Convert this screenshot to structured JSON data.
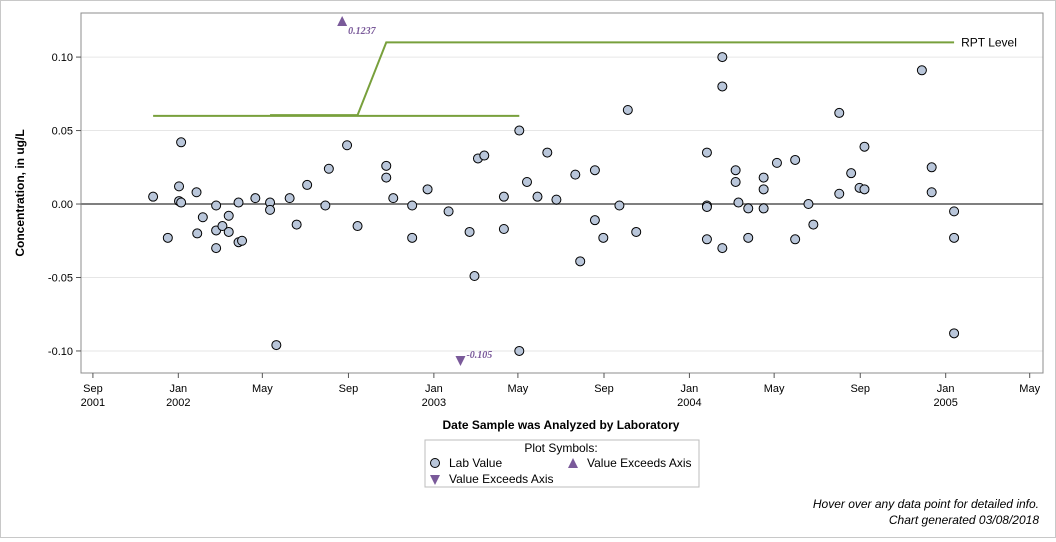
{
  "chart_data": {
    "type": "scatter",
    "ylabel": "Concentration, in ug/L",
    "xlabel": "Date Sample was Analyzed by Laboratory",
    "ylim": [
      -0.115,
      0.13
    ],
    "xlim": [
      "2001-08-15",
      "2005-05-20"
    ],
    "yticks": [
      {
        "value": 0.1,
        "label": "0.10"
      },
      {
        "value": 0.05,
        "label": "0.05"
      },
      {
        "value": 0.0,
        "label": "0.00"
      },
      {
        "value": -0.05,
        "label": "-0.05"
      },
      {
        "value": -0.1,
        "label": "-0.10"
      }
    ],
    "xticks": [
      {
        "date": "2001-09-01",
        "label1": "Sep",
        "label2": "2001"
      },
      {
        "date": "2002-01-01",
        "label1": "Jan",
        "label2": "2002"
      },
      {
        "date": "2002-05-01",
        "label1": "May",
        "label2": ""
      },
      {
        "date": "2002-09-01",
        "label1": "Sep",
        "label2": ""
      },
      {
        "date": "2003-01-01",
        "label1": "Jan",
        "label2": "2003"
      },
      {
        "date": "2003-05-01",
        "label1": "May",
        "label2": ""
      },
      {
        "date": "2003-09-01",
        "label1": "Sep",
        "label2": ""
      },
      {
        "date": "2004-01-01",
        "label1": "Jan",
        "label2": "2004"
      },
      {
        "date": "2004-05-01",
        "label1": "May",
        "label2": ""
      },
      {
        "date": "2004-09-01",
        "label1": "Sep",
        "label2": ""
      },
      {
        "date": "2005-01-01",
        "label1": "Jan",
        "label2": "2005"
      },
      {
        "date": "2005-05-01",
        "label1": "May",
        "label2": ""
      }
    ],
    "zero_line": 0.0,
    "gridlines": "horizontal",
    "series": [
      {
        "name": "Lab Value",
        "marker": "circle",
        "color": "#b9c6da",
        "points": [
          {
            "x": "2001-11-26",
            "y": 0.005
          },
          {
            "x": "2001-12-17",
            "y": -0.023
          },
          {
            "x": "2002-01-02",
            "y": 0.012
          },
          {
            "x": "2002-01-02",
            "y": 0.002
          },
          {
            "x": "2002-01-05",
            "y": 0.001
          },
          {
            "x": "2002-01-05",
            "y": 0.042
          },
          {
            "x": "2002-01-27",
            "y": 0.008
          },
          {
            "x": "2002-01-28",
            "y": -0.02
          },
          {
            "x": "2002-02-05",
            "y": -0.009
          },
          {
            "x": "2002-02-24",
            "y": -0.001
          },
          {
            "x": "2002-02-24",
            "y": -0.018
          },
          {
            "x": "2002-02-24",
            "y": -0.03
          },
          {
            "x": "2002-03-05",
            "y": -0.015
          },
          {
            "x": "2002-03-14",
            "y": -0.019
          },
          {
            "x": "2002-03-14",
            "y": -0.008
          },
          {
            "x": "2002-03-28",
            "y": 0.001
          },
          {
            "x": "2002-03-28",
            "y": -0.026
          },
          {
            "x": "2002-04-02",
            "y": -0.025
          },
          {
            "x": "2002-04-21",
            "y": 0.004
          },
          {
            "x": "2002-05-12",
            "y": 0.001
          },
          {
            "x": "2002-05-12",
            "y": -0.004
          },
          {
            "x": "2002-05-21",
            "y": -0.096
          },
          {
            "x": "2002-06-09",
            "y": 0.004
          },
          {
            "x": "2002-06-19",
            "y": -0.014
          },
          {
            "x": "2002-07-04",
            "y": 0.013
          },
          {
            "x": "2002-07-30",
            "y": -0.001
          },
          {
            "x": "2002-08-04",
            "y": 0.024
          },
          {
            "x": "2002-08-30",
            "y": 0.04
          },
          {
            "x": "2002-09-14",
            "y": -0.015
          },
          {
            "x": "2002-10-25",
            "y": 0.018
          },
          {
            "x": "2002-10-25",
            "y": 0.026
          },
          {
            "x": "2002-11-04",
            "y": 0.004
          },
          {
            "x": "2002-12-01",
            "y": -0.001
          },
          {
            "x": "2002-12-01",
            "y": -0.023
          },
          {
            "x": "2002-12-23",
            "y": 0.01
          },
          {
            "x": "2003-01-22",
            "y": -0.005
          },
          {
            "x": "2003-02-21",
            "y": -0.019
          },
          {
            "x": "2003-02-28",
            "y": -0.049
          },
          {
            "x": "2003-03-05",
            "y": 0.031
          },
          {
            "x": "2003-03-14",
            "y": 0.033
          },
          {
            "x": "2003-04-11",
            "y": -0.017
          },
          {
            "x": "2003-04-11",
            "y": 0.005
          },
          {
            "x": "2003-05-03",
            "y": 0.05
          },
          {
            "x": "2003-05-03",
            "y": -0.1
          },
          {
            "x": "2003-05-14",
            "y": 0.015
          },
          {
            "x": "2003-05-29",
            "y": 0.005
          },
          {
            "x": "2003-06-12",
            "y": 0.035
          },
          {
            "x": "2003-06-25",
            "y": 0.003
          },
          {
            "x": "2003-07-22",
            "y": 0.02
          },
          {
            "x": "2003-07-29",
            "y": -0.039
          },
          {
            "x": "2003-08-19",
            "y": 0.023
          },
          {
            "x": "2003-08-19",
            "y": -0.011
          },
          {
            "x": "2003-08-31",
            "y": -0.023
          },
          {
            "x": "2003-09-23",
            "y": -0.001
          },
          {
            "x": "2003-10-05",
            "y": 0.064
          },
          {
            "x": "2003-10-17",
            "y": -0.019
          },
          {
            "x": "2004-01-26",
            "y": -0.001
          },
          {
            "x": "2004-01-26",
            "y": 0.035
          },
          {
            "x": "2004-01-26",
            "y": -0.002
          },
          {
            "x": "2004-01-26",
            "y": -0.024
          },
          {
            "x": "2004-02-17",
            "y": 0.1
          },
          {
            "x": "2004-02-17",
            "y": 0.08
          },
          {
            "x": "2004-02-17",
            "y": -0.03
          },
          {
            "x": "2004-03-07",
            "y": 0.023
          },
          {
            "x": "2004-03-07",
            "y": 0.015
          },
          {
            "x": "2004-03-11",
            "y": 0.001
          },
          {
            "x": "2004-03-25",
            "y": -0.003
          },
          {
            "x": "2004-03-25",
            "y": -0.023
          },
          {
            "x": "2004-04-16",
            "y": 0.018
          },
          {
            "x": "2004-04-16",
            "y": 0.01
          },
          {
            "x": "2004-04-16",
            "y": -0.003
          },
          {
            "x": "2004-05-05",
            "y": 0.028
          },
          {
            "x": "2004-05-31",
            "y": 0.03
          },
          {
            "x": "2004-05-31",
            "y": -0.024
          },
          {
            "x": "2004-06-19",
            "y": 0.0
          },
          {
            "x": "2004-06-26",
            "y": -0.014
          },
          {
            "x": "2004-08-02",
            "y": 0.062
          },
          {
            "x": "2004-08-02",
            "y": 0.007
          },
          {
            "x": "2004-08-19",
            "y": 0.021
          },
          {
            "x": "2004-08-31",
            "y": 0.011
          },
          {
            "x": "2004-09-07",
            "y": 0.039
          },
          {
            "x": "2004-09-07",
            "y": 0.01
          },
          {
            "x": "2004-11-28",
            "y": 0.091
          },
          {
            "x": "2004-12-12",
            "y": 0.025
          },
          {
            "x": "2004-12-12",
            "y": 0.008
          },
          {
            "x": "2005-01-13",
            "y": -0.005
          },
          {
            "x": "2005-01-13",
            "y": -0.023
          },
          {
            "x": "2005-01-13",
            "y": -0.088
          }
        ]
      },
      {
        "name": "Value Exceeds Axis",
        "marker": "triangle-up",
        "color": "#7a5a9a",
        "points": [
          {
            "x": "2002-08-23",
            "y": 0.1237,
            "label": "0.1237"
          }
        ]
      },
      {
        "name": "Value Exceeds Axis",
        "marker": "triangle-down",
        "color": "#7a5a9a",
        "points": [
          {
            "x": "2003-02-08",
            "y": -0.105,
            "label": "-0.105"
          }
        ]
      }
    ],
    "reference_lines": {
      "color": "#78a03c",
      "label": "RPT Level",
      "segments": [
        [
          [
            "2001-11-26",
            0.06
          ],
          [
            "2003-05-03",
            0.06
          ]
        ],
        [
          [
            "2002-05-12",
            0.0605
          ],
          [
            "2002-09-14",
            0.0605
          ],
          [
            "2002-10-25",
            0.11
          ],
          [
            "2005-01-13",
            0.11
          ]
        ]
      ]
    },
    "legend": {
      "title": "Plot Symbols:",
      "placement": "bottom-center",
      "entries": [
        {
          "marker": "circle",
          "label": "Lab Value"
        },
        {
          "marker": "triangle-up",
          "label": "Value Exceeds Axis"
        },
        {
          "marker": "triangle-down",
          "label": "Value Exceeds Axis"
        }
      ]
    },
    "footnotes": [
      "Hover over any data point for detailed info.",
      "Chart generated 03/08/2018"
    ]
  }
}
